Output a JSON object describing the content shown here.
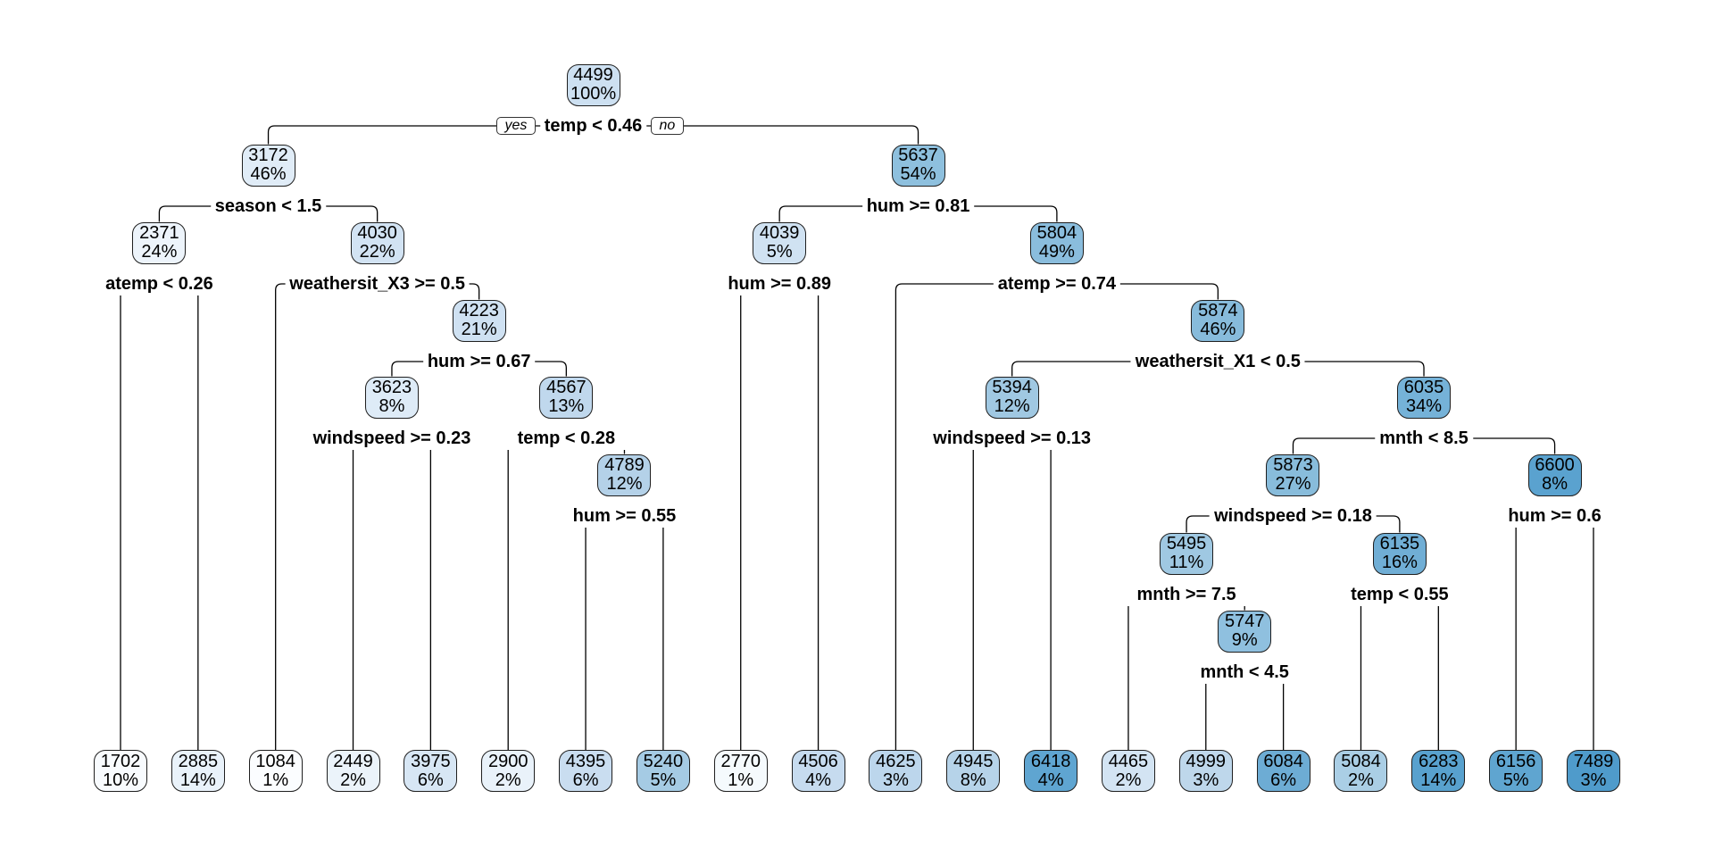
{
  "labels": {
    "yes": "yes",
    "no": "no"
  },
  "colors": {
    "edge": "#000000",
    "node_border": "#1f1f1f",
    "text": "#000000",
    "background": "#ffffff"
  },
  "chart_data": {
    "type": "tree",
    "root": {
      "value": "4499",
      "pct": "100%",
      "color": "#cde0f1",
      "split": "temp < 0.46",
      "children": [
        {
          "value": "3172",
          "pct": "46%",
          "color": "#e0ecf7",
          "split": "season < 1.5",
          "children": [
            {
              "value": "2371",
              "pct": "24%",
              "color": "#edf4fb",
              "split": "atemp < 0.26",
              "children": [
                {
                  "value": "1702",
                  "pct": "10%",
                  "color": "#f8fbfe"
                },
                {
                  "value": "2885",
                  "pct": "14%",
                  "color": "#e9f2fa"
                }
              ]
            },
            {
              "value": "4030",
              "pct": "22%",
              "color": "#d2e3f3",
              "split": "weathersit_X3 >= 0.5",
              "children": [
                {
                  "value": "1084",
                  "pct": "1%",
                  "color": "#fbfdff"
                },
                {
                  "value": "4223",
                  "pct": "21%",
                  "color": "#cfe1f2",
                  "split": "hum >= 0.67",
                  "children": [
                    {
                      "value": "3623",
                      "pct": "8%",
                      "color": "#deebf7",
                      "split": "windspeed >= 0.23",
                      "children": [
                        {
                          "value": "2449",
                          "pct": "2%",
                          "color": "#ebf3fa"
                        },
                        {
                          "value": "3975",
                          "pct": "6%",
                          "color": "#d7e6f4"
                        }
                      ]
                    },
                    {
                      "value": "4567",
                      "pct": "13%",
                      "color": "#c0d8ed",
                      "split": "temp < 0.28",
                      "children": [
                        {
                          "value": "2900",
                          "pct": "2%",
                          "color": "#e9f2fa"
                        },
                        {
                          "value": "4789",
                          "pct": "12%",
                          "color": "#b4d1e8",
                          "split": "hum >= 0.55",
                          "children": [
                            {
                              "value": "4395",
                              "pct": "6%",
                              "color": "#c9ddf0"
                            },
                            {
                              "value": "5240",
                              "pct": "5%",
                              "color": "#a5cbe4"
                            }
                          ]
                        }
                      ]
                    }
                  ]
                }
              ]
            }
          ]
        },
        {
          "value": "5637",
          "pct": "54%",
          "color": "#8ec0de",
          "split": "hum >= 0.81",
          "children": [
            {
              "value": "4039",
              "pct": "5%",
              "color": "#d0e2f2",
              "split": "hum >= 0.89",
              "children": [
                {
                  "value": "2770",
                  "pct": "1%",
                  "color": "#f5fafd"
                },
                {
                  "value": "4506",
                  "pct": "4%",
                  "color": "#c6dbef"
                }
              ]
            },
            {
              "value": "5804",
              "pct": "49%",
              "color": "#8abddd",
              "split": "atemp >= 0.74",
              "children": [
                {
                  "value": "4625",
                  "pct": "3%",
                  "color": "#bcd6ec"
                },
                {
                  "value": "5874",
                  "pct": "46%",
                  "color": "#87bbdb",
                  "split": "weathersit_X1 < 0.5",
                  "children": [
                    {
                      "value": "5394",
                      "pct": "12%",
                      "color": "#a0c8e2",
                      "split": "windspeed >= 0.13",
                      "children": [
                        {
                          "value": "4945",
                          "pct": "8%",
                          "color": "#b6d3e9"
                        },
                        {
                          "value": "6418",
                          "pct": "4%",
                          "color": "#5fa5d1"
                        }
                      ]
                    },
                    {
                      "value": "6035",
                      "pct": "34%",
                      "color": "#75b2d8",
                      "split": "mnth < 8.5",
                      "children": [
                        {
                          "value": "5873",
                          "pct": "27%",
                          "color": "#88bcdb",
                          "split": "windspeed >= 0.18",
                          "children": [
                            {
                              "value": "5495",
                              "pct": "11%",
                              "color": "#9fc8e2",
                              "split": "mnth >= 7.5",
                              "children": [
                                {
                                  "value": "4465",
                                  "pct": "2%",
                                  "color": "#d3e4f3"
                                },
                                {
                                  "value": "5747",
                                  "pct": "9%",
                                  "color": "#8fc0df",
                                  "split": "mnth < 4.5",
                                  "children": [
                                    {
                                      "value": "4999",
                                      "pct": "3%",
                                      "color": "#bed7eb"
                                    },
                                    {
                                      "value": "6084",
                                      "pct": "6%",
                                      "color": "#6dacd4"
                                    }
                                  ]
                                }
                              ]
                            },
                            {
                              "value": "6135",
                              "pct": "16%",
                              "color": "#70aed5",
                              "split": "temp < 0.55",
                              "children": [
                                {
                                  "value": "5084",
                                  "pct": "2%",
                                  "color": "#aacee5"
                                },
                                {
                                  "value": "6283",
                                  "pct": "14%",
                                  "color": "#58a1ce"
                                }
                              ]
                            }
                          ]
                        },
                        {
                          "value": "6600",
                          "pct": "8%",
                          "color": "#5aa2cf",
                          "split": "hum >= 0.6",
                          "children": [
                            {
                              "value": "6156",
                              "pct": "5%",
                              "color": "#5fa5d0"
                            },
                            {
                              "value": "7489",
                              "pct": "3%",
                              "color": "#4f9bcb"
                            }
                          ]
                        }
                      ]
                    }
                  ]
                }
              ]
            }
          ]
        }
      ]
    }
  }
}
